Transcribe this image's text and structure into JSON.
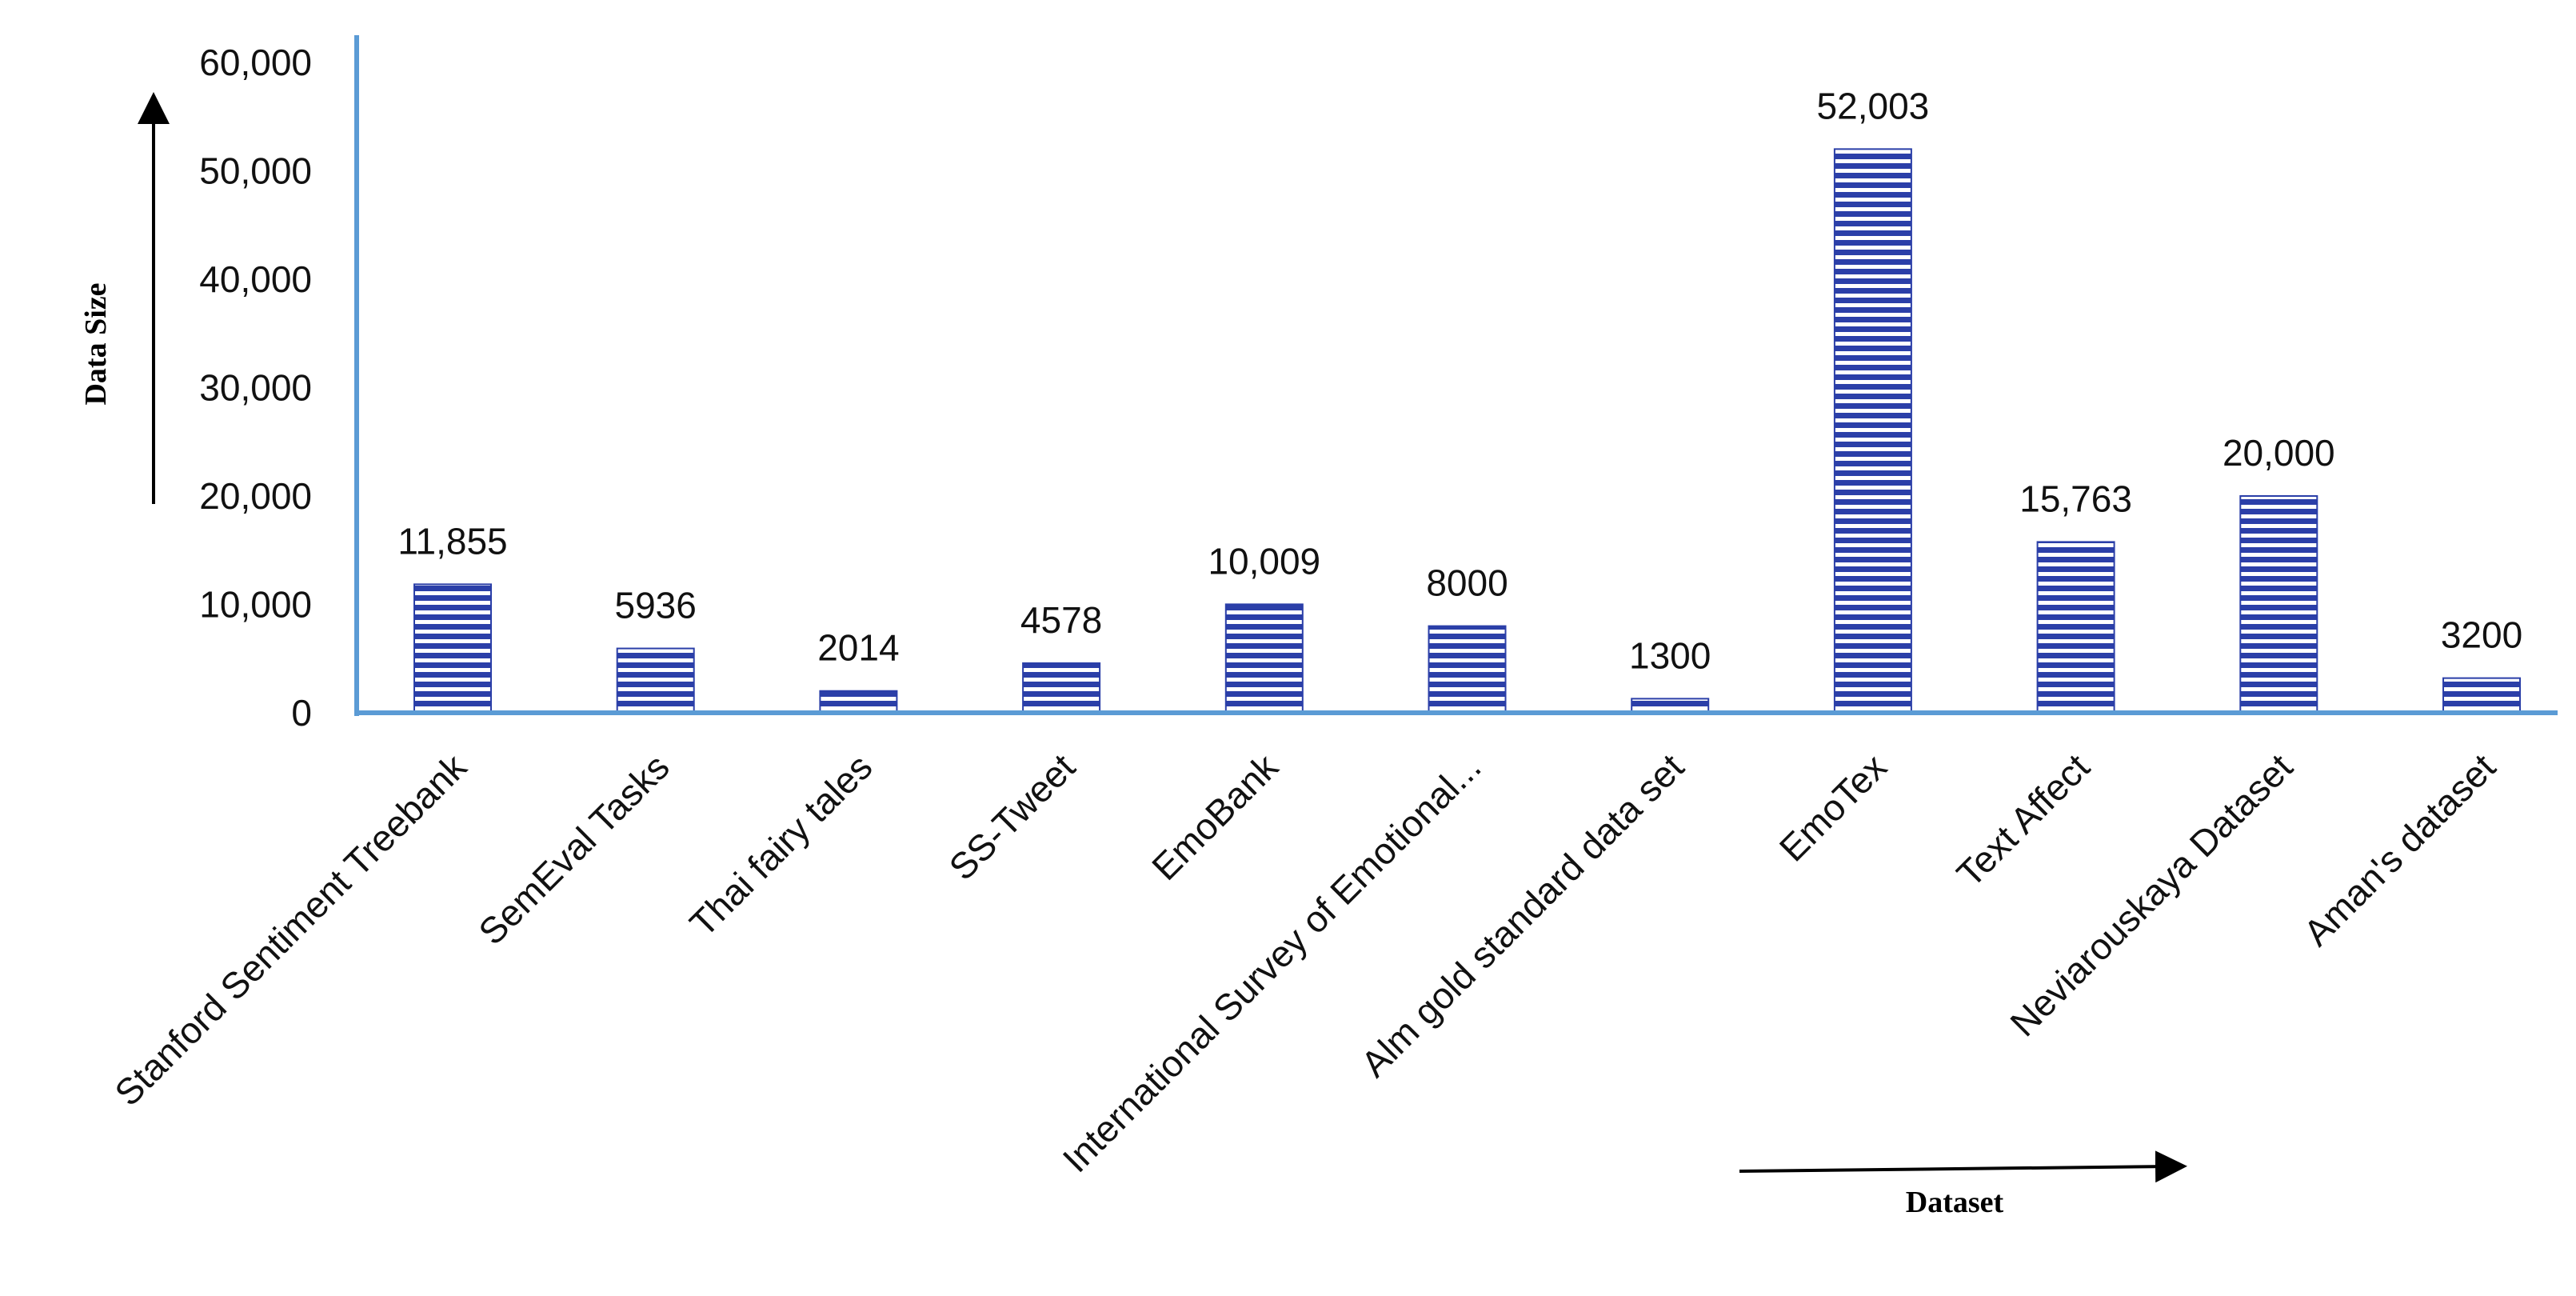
{
  "chart_data": {
    "type": "bar",
    "ylabel": "Data Size",
    "xlabel": "Dataset",
    "ylim": [
      0,
      60000
    ],
    "yticks": [
      "0",
      "10,000",
      "20,000",
      "30,000",
      "40,000",
      "50,000",
      "60,000"
    ],
    "ytick_values": [
      0,
      10000,
      20000,
      30000,
      40000,
      50000,
      60000
    ],
    "categories": [
      "Stanford Sentiment Treebank",
      "SemEval Tasks",
      "Thai fairy tales",
      "SS-Tweet",
      "EmoBank",
      "International Survey of Emotional...",
      "Alm gold standard data set",
      "EmoTex",
      "Text Affect",
      "Neviarouskaya Dataset",
      "Aman's dataset"
    ],
    "values": [
      11855,
      5936,
      2014,
      4578,
      10009,
      8000,
      1300,
      52003,
      15763,
      20000,
      3200
    ],
    "data_labels": [
      "11,855",
      "5936",
      "2014",
      "4578",
      "10,009",
      "8000",
      "1300",
      "52,003",
      "15,763",
      "20,000",
      "3200"
    ],
    "grid": false,
    "legend": "none",
    "colors": {
      "bar_stripe": "#2b3fa8",
      "bar_fill": "#ffffff",
      "axis": "#5b9bd5"
    }
  }
}
